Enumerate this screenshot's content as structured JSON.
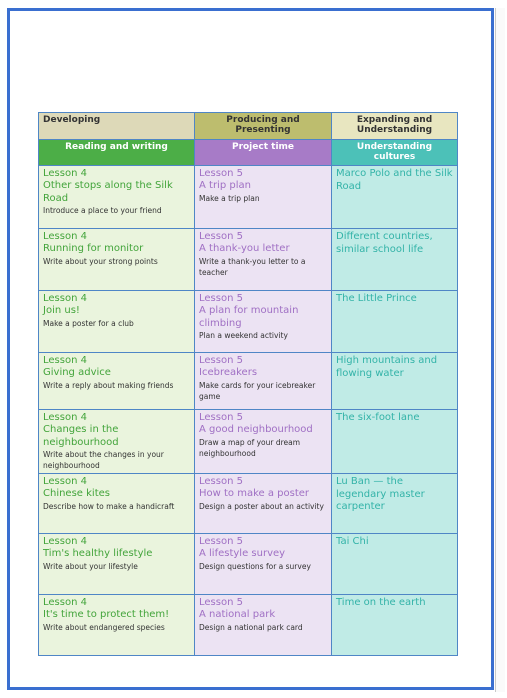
{
  "header": {
    "developing": "Developing",
    "producing": "Producing and Presenting",
    "expanding": "Expanding and Understanding"
  },
  "subheader": {
    "reading": "Reading and writing",
    "project": "Project time",
    "understanding": "Understanding cultures"
  },
  "rows": [
    {
      "col1": {
        "lesson": "Lesson 4",
        "title": "Other stops along the Silk Road",
        "task": "Introduce a place to your friend"
      },
      "col2": {
        "lesson": "Lesson 5",
        "title": "A trip plan",
        "task": "Make a trip plan"
      },
      "col3": {
        "title": "Marco Polo and the Silk Road"
      }
    },
    {
      "col1": {
        "lesson": "Lesson 4",
        "title": "Running for monitor",
        "task": "Write about your strong points"
      },
      "col2": {
        "lesson": "Lesson 5",
        "title": "A thank-you letter",
        "task": "Write a thank-you letter to a teacher"
      },
      "col3": {
        "title": "Different countries, similar school life"
      }
    },
    {
      "col1": {
        "lesson": "Lesson 4",
        "title": "Join us!",
        "task": "Make a poster for a club"
      },
      "col2": {
        "lesson": "Lesson 5",
        "title": "A plan for mountain climbing",
        "task": "Plan a weekend activity"
      },
      "col3": {
        "title": "The Little Prince"
      }
    },
    {
      "col1": {
        "lesson": "Lesson 4",
        "title": "Giving advice",
        "task": "Write a reply about making friends"
      },
      "col2": {
        "lesson": "Lesson 5",
        "title": "Icebreakers",
        "task": "Make cards for your icebreaker game"
      },
      "col3": {
        "title": "High mountains and flowing water"
      }
    },
    {
      "col1": {
        "lesson": "Lesson 4",
        "title": "Changes in the neighbourhood",
        "task": "Write about the changes in your neighbourhood"
      },
      "col2": {
        "lesson": "Lesson 5",
        "title": "A good neighbourhood",
        "task": "Draw a map of your dream neighbourhood"
      },
      "col3": {
        "title": "The six-foot lane"
      }
    },
    {
      "col1": {
        "lesson": "Lesson 4",
        "title": "Chinese kites",
        "task": "Describe how to make a handicraft"
      },
      "col2": {
        "lesson": "Lesson 5",
        "title": "How to make a poster",
        "task": "Design a poster about an activity"
      },
      "col3": {
        "title": "Lu Ban — the legendary master carpenter"
      }
    },
    {
      "col1": {
        "lesson": "Lesson 4",
        "title": "Tim's healthy lifestyle",
        "task": "Write about your lifestyle"
      },
      "col2": {
        "lesson": "Lesson 5",
        "title": "A lifestyle survey",
        "task": "Design questions for a survey"
      },
      "col3": {
        "title": "Tai Chi"
      }
    },
    {
      "col1": {
        "lesson": "Lesson 4",
        "title": "It's time to protect them!",
        "task": "Write about endangered species"
      },
      "col2": {
        "lesson": "Lesson 5",
        "title": "A national park",
        "task": "Design a national park card"
      },
      "col3": {
        "title": "Time on the earth"
      }
    }
  ]
}
